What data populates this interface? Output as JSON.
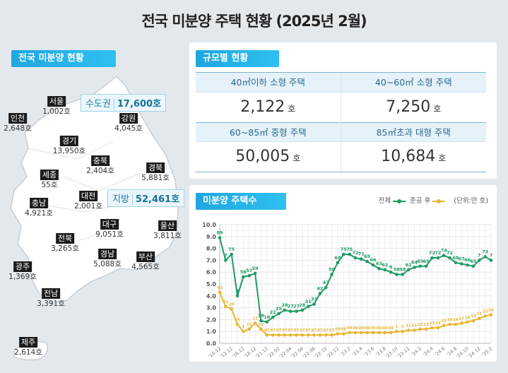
{
  "title": "전국 미분양 주택 현황  (2025년 2월)",
  "map": {
    "tag": "전국 미분양 현황",
    "metro": {
      "label": "수도권",
      "value": "17,600호"
    },
    "local": {
      "label": "지방",
      "value": "52,461호"
    },
    "regions": [
      {
        "name": "서울",
        "value": "1,002호"
      },
      {
        "name": "인천",
        "value": "2,648호"
      },
      {
        "name": "강원",
        "value": "4,045호"
      },
      {
        "name": "경기",
        "value": "13,950호"
      },
      {
        "name": "충북",
        "value": "2,404호"
      },
      {
        "name": "경북",
        "value": "5,881호"
      },
      {
        "name": "세종",
        "value": "55호"
      },
      {
        "name": "대전",
        "value": "2,001호"
      },
      {
        "name": "충남",
        "value": "4,921호"
      },
      {
        "name": "대구",
        "value": "9,051호"
      },
      {
        "name": "울산",
        "value": "3,811호"
      },
      {
        "name": "전북",
        "value": "3,265호"
      },
      {
        "name": "경남",
        "value": "5,088호"
      },
      {
        "name": "부산",
        "value": "4,565호"
      },
      {
        "name": "광주",
        "value": "1,369호"
      },
      {
        "name": "전남",
        "value": "3,391호"
      },
      {
        "name": "제주",
        "value": "2,614호"
      }
    ]
  },
  "sizes": {
    "tag": "규모별 현황",
    "unit": "호",
    "items": [
      {
        "label": "40㎡이하 소형 주택",
        "value": "2,122"
      },
      {
        "label": "40~60㎡ 소형 주택",
        "value": "7,250"
      },
      {
        "label": "60~85㎡ 중형 주택",
        "value": "50,005"
      },
      {
        "label": "85㎡초과 대형 주택",
        "value": "10,684"
      }
    ]
  },
  "chart_data": {
    "type": "line",
    "title": "미분양 주택수",
    "unit_note": "(단위:만 호)",
    "ylim": [
      0,
      10
    ],
    "yticks": [
      "0.0",
      "1.0",
      "2.0",
      "3.0",
      "4.0",
      "5.0",
      "6.0",
      "7.0",
      "8.0",
      "9.0",
      "10.0"
    ],
    "grid": true,
    "legend_placement": "top-right",
    "x": [
      "'10.12",
      "",
      "'12.12",
      "",
      "'16.12",
      "",
      "'18.12",
      "",
      "'21.12",
      "",
      "'22.02",
      "",
      "'22.04",
      "",
      "'22.06",
      "",
      "'22.08",
      "",
      "'22.10",
      "",
      "'22.12",
      "",
      "'23.2",
      "",
      "'23.4",
      "",
      "'23.6",
      "",
      "'23.8",
      "",
      "'23.10",
      "",
      "'23.12",
      "",
      "'24.2",
      "",
      "'24.4",
      "",
      "'24.6",
      "",
      "'24.8",
      "",
      "'24.10",
      "",
      "'24.12",
      "",
      "'25.2"
    ],
    "series": [
      {
        "name": "전체",
        "color": "#1f9a63",
        "values": [
          8.9,
          7.0,
          7.5,
          4.0,
          5.6,
          5.7,
          5.9,
          1.9,
          1.8,
          2.2,
          2.5,
          2.8,
          2.7,
          2.7,
          2.8,
          3.1,
          3.3,
          4.2,
          4.7,
          5.8,
          6.8,
          7.5,
          7.5,
          7.2,
          7.1,
          6.9,
          6.6,
          6.3,
          6.2,
          6.0,
          5.8,
          5.8,
          6.2,
          6.4,
          6.5,
          6.5,
          7.2,
          7.2,
          7.4,
          7.2,
          6.8,
          6.7,
          6.6,
          6.5,
          7.0,
          7.3,
          7.0
        ]
      },
      {
        "name": "준공 후",
        "color": "#e8b632",
        "values": [
          4.3,
          3.1,
          2.9,
          1.6,
          1.0,
          1.2,
          1.7,
          1.2,
          0.7,
          0.7,
          0.7,
          0.7,
          0.7,
          0.7,
          0.7,
          0.7,
          0.7,
          0.7,
          0.7,
          0.7,
          0.8,
          0.8,
          0.9,
          0.9,
          0.9,
          0.9,
          0.9,
          0.9,
          0.9,
          0.9,
          1.0,
          1.0,
          1.1,
          1.1,
          1.2,
          1.2,
          1.3,
          1.3,
          1.5,
          1.6,
          1.6,
          1.7,
          1.8,
          1.9,
          2.1,
          2.3,
          2.4
        ]
      }
    ]
  }
}
